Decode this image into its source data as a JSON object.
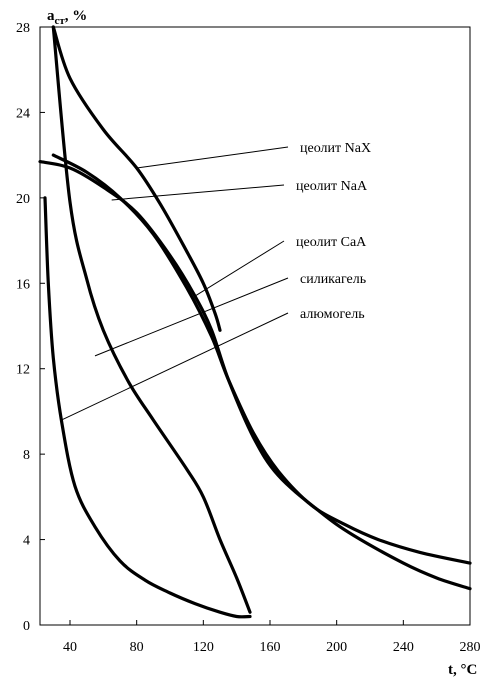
{
  "chart_data": {
    "type": "line",
    "title": "",
    "ylabel": "a",
    "ylabel_sub": "ст",
    "ylabel_unit": ", %",
    "xlabel": "t, °C",
    "xlim": [
      22,
      280
    ],
    "ylim": [
      0,
      28
    ],
    "x_tick_labels": [
      "40",
      "80",
      "120",
      "160",
      "200",
      "240",
      "280"
    ],
    "x_tick_values": [
      40,
      80,
      120,
      160,
      200,
      240,
      280
    ],
    "y_tick_labels": [
      "0",
      "4",
      "8",
      "12",
      "16",
      "20",
      "24",
      "28"
    ],
    "y_tick_values": [
      0,
      4,
      8,
      12,
      16,
      20,
      24,
      28
    ],
    "grid": false,
    "legend": "none",
    "line_color": "#000000",
    "series": [
      {
        "name": "цеолит  NaX",
        "points": [
          [
            30,
            28
          ],
          [
            40,
            25.6
          ],
          [
            60,
            23.2
          ],
          [
            80,
            21.4
          ],
          [
            95,
            19.6
          ],
          [
            110,
            17.5
          ],
          [
            120,
            16
          ],
          [
            127,
            14.6
          ],
          [
            130,
            13.8
          ]
        ]
      },
      {
        "name": "цеолит  NaA",
        "points": [
          [
            30,
            22
          ],
          [
            50,
            21.2
          ],
          [
            70,
            20
          ],
          [
            90,
            18.3
          ],
          [
            110,
            15.8
          ],
          [
            125,
            13.5
          ],
          [
            135,
            11.5
          ],
          [
            150,
            9
          ],
          [
            165,
            7.2
          ],
          [
            185,
            5.6
          ],
          [
            205,
            4.7
          ],
          [
            225,
            4
          ],
          [
            250,
            3.4
          ],
          [
            280,
            2.9
          ]
        ]
      },
      {
        "name": "цеолит  СаА",
        "points": [
          [
            22,
            21.7
          ],
          [
            40,
            21.4
          ],
          [
            60,
            20.5
          ],
          [
            80,
            19.3
          ],
          [
            100,
            17.3
          ],
          [
            115,
            15.4
          ],
          [
            125,
            13.8
          ],
          [
            135,
            11.5
          ],
          [
            150,
            8.8
          ],
          [
            165,
            7
          ],
          [
            190,
            5.3
          ],
          [
            210,
            4.2
          ],
          [
            240,
            2.9
          ],
          [
            260,
            2.2
          ],
          [
            280,
            1.7
          ]
        ]
      },
      {
        "name": "силикагель",
        "points": [
          [
            30,
            28
          ],
          [
            40,
            19.8
          ],
          [
            50,
            16.2
          ],
          [
            60,
            13.8
          ],
          [
            75,
            11.4
          ],
          [
            90,
            9.6
          ],
          [
            110,
            7.3
          ],
          [
            120,
            6
          ],
          [
            130,
            4
          ],
          [
            140,
            2.2
          ],
          [
            148,
            0.6
          ]
        ]
      },
      {
        "name": "алюмогель",
        "points": [
          [
            25,
            20
          ],
          [
            27,
            16
          ],
          [
            30,
            12.5
          ],
          [
            35,
            9.5
          ],
          [
            43,
            6.5
          ],
          [
            55,
            4.6
          ],
          [
            70,
            3
          ],
          [
            85,
            2.1
          ],
          [
            100,
            1.5
          ],
          [
            115,
            1
          ],
          [
            130,
            0.6
          ],
          [
            140,
            0.4
          ],
          [
            148,
            0.4
          ]
        ]
      }
    ],
    "annotations": [
      {
        "text": "цеолит  NaX",
        "target": [
          80,
          21.4
        ]
      },
      {
        "text": "цеолит  NaA",
        "target": [
          65,
          19.9
        ]
      },
      {
        "text": "цеолит  СаА",
        "target": [
          115,
          15.4
        ]
      },
      {
        "text": "силикагель",
        "target": [
          55,
          12.6
        ]
      },
      {
        "text": "алюмогель",
        "target": [
          35,
          9.6
        ]
      }
    ]
  }
}
